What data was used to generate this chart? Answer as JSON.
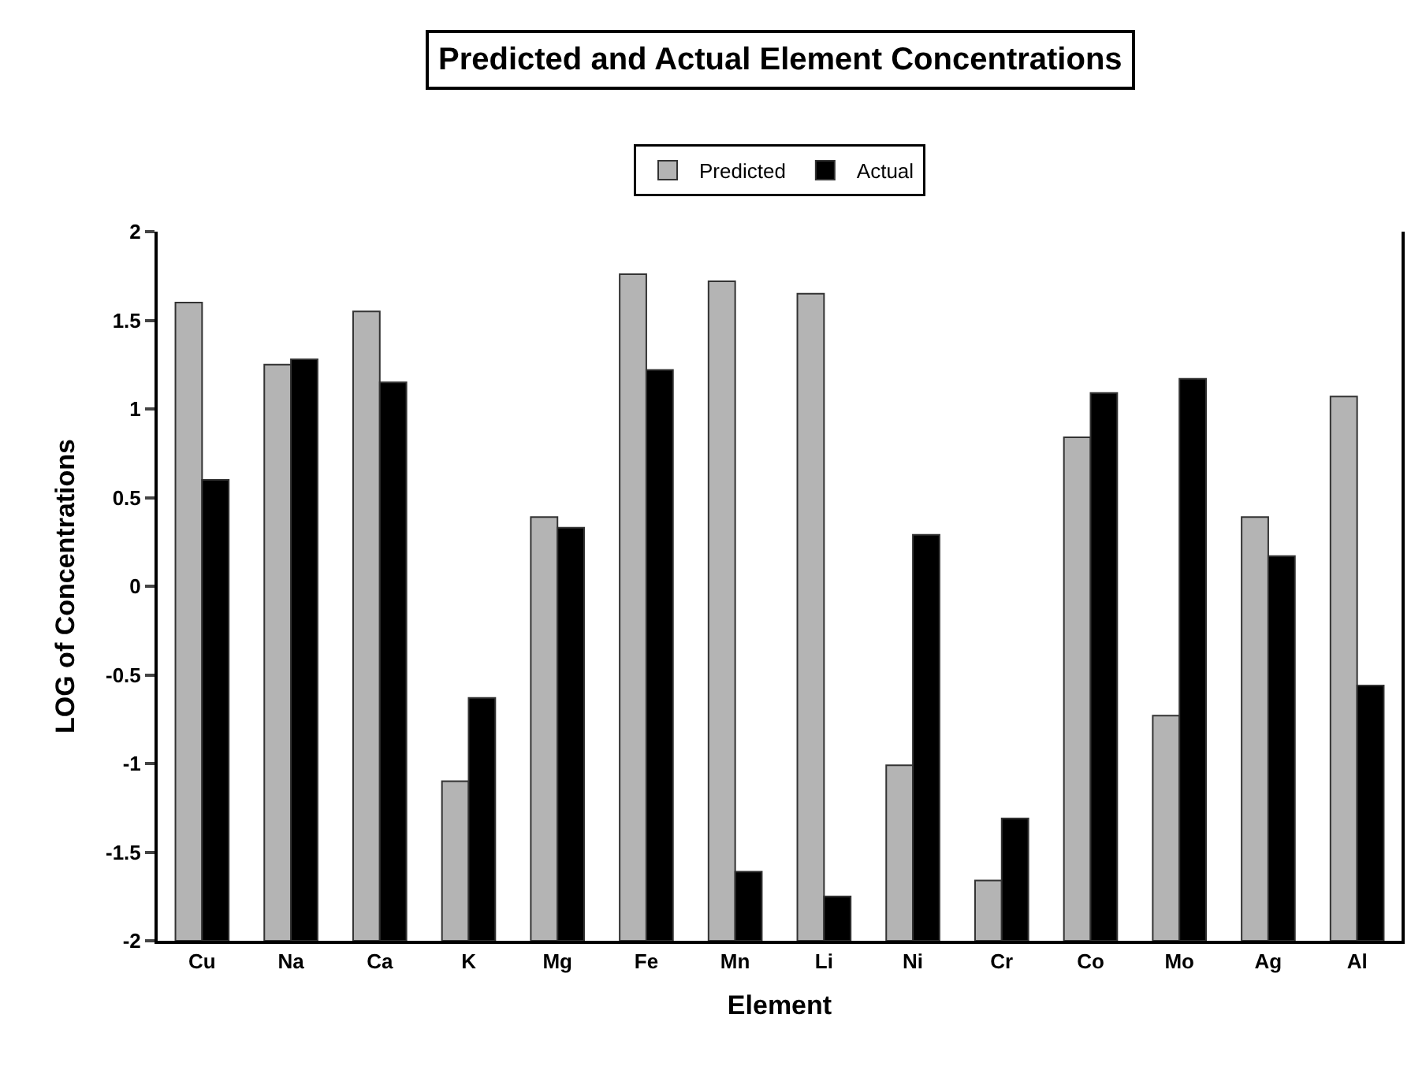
{
  "chart_data": {
    "type": "bar",
    "title": "Predicted and Actual Element Concentrations",
    "xlabel": "Element",
    "ylabel": "LOG of Concentrations",
    "categories": [
      "Cu",
      "Na",
      "Ca",
      "K",
      "Mg",
      "Fe",
      "Mn",
      "Li",
      "Ni",
      "Cr",
      "Co",
      "Mo",
      "Ag",
      "Al"
    ],
    "series": [
      {
        "name": "Predicted",
        "color": "#b4b4b4",
        "base": [
          -2,
          -2,
          -2,
          -2,
          -2,
          -2,
          -2,
          -2,
          -2,
          -2,
          -2,
          -2,
          -2,
          -2
        ],
        "values": [
          3.6,
          3.25,
          3.55,
          0.9,
          2.39,
          3.76,
          3.72,
          3.65,
          0.99,
          0.34,
          2.84,
          1.27,
          2.39,
          3.07
        ]
      },
      {
        "name": "Actual",
        "color": "#000000",
        "base": [
          -2,
          -2,
          -2,
          -2,
          -2,
          -2,
          -2,
          -2,
          -2,
          -2,
          -2,
          -2,
          -2,
          -2
        ],
        "values": [
          2.6,
          3.28,
          3.15,
          1.37,
          2.33,
          3.22,
          0.39,
          0.25,
          2.29,
          0.69,
          3.09,
          3.17,
          2.17,
          1.44
        ]
      }
    ],
    "ylim": [
      -2,
      2
    ],
    "yticks": [
      -2,
      -1.5,
      -1,
      -0.5,
      0,
      0.5,
      1,
      1.5,
      2
    ],
    "legend": "top"
  }
}
